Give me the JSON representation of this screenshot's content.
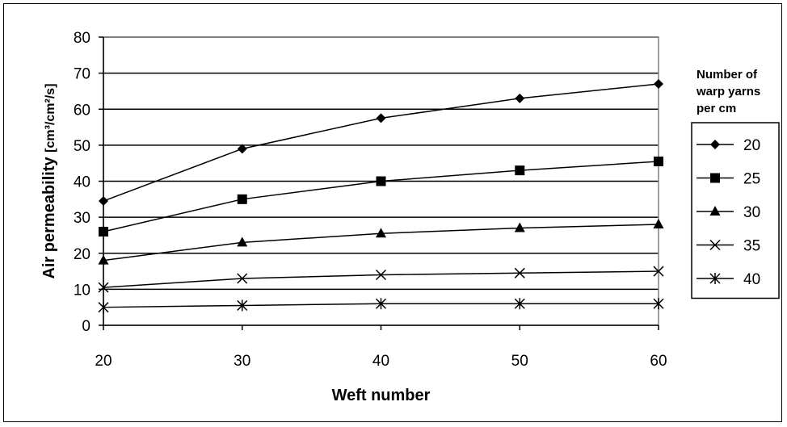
{
  "chart_data": {
    "type": "line",
    "xlabel": "Weft number",
    "ylabel": "Air permeability",
    "ylabel_unit": "[cm³/cm²/s]",
    "x": [
      20,
      30,
      40,
      50,
      60
    ],
    "xlim": [
      20,
      60
    ],
    "ylim": [
      0,
      80
    ],
    "yticks": [
      0,
      10,
      20,
      30,
      40,
      50,
      60,
      70,
      80
    ],
    "xticks": [
      20,
      30,
      40,
      50,
      60
    ],
    "grid": "horizontal",
    "legend_title": [
      "Number of",
      "warp yarns",
      "per cm"
    ],
    "legend_position": "right",
    "series": [
      {
        "name": "20",
        "marker": "diamond",
        "values": [
          34.5,
          49,
          57.5,
          63,
          67
        ]
      },
      {
        "name": "25",
        "marker": "square",
        "values": [
          26,
          35,
          40,
          43,
          45.5
        ]
      },
      {
        "name": "30",
        "marker": "triangle",
        "values": [
          18,
          23,
          25.5,
          27,
          28
        ]
      },
      {
        "name": "35",
        "marker": "x",
        "values": [
          10.5,
          13,
          14,
          14.5,
          15
        ]
      },
      {
        "name": "40",
        "marker": "star",
        "values": [
          5,
          5.5,
          6,
          6,
          6
        ]
      }
    ]
  }
}
